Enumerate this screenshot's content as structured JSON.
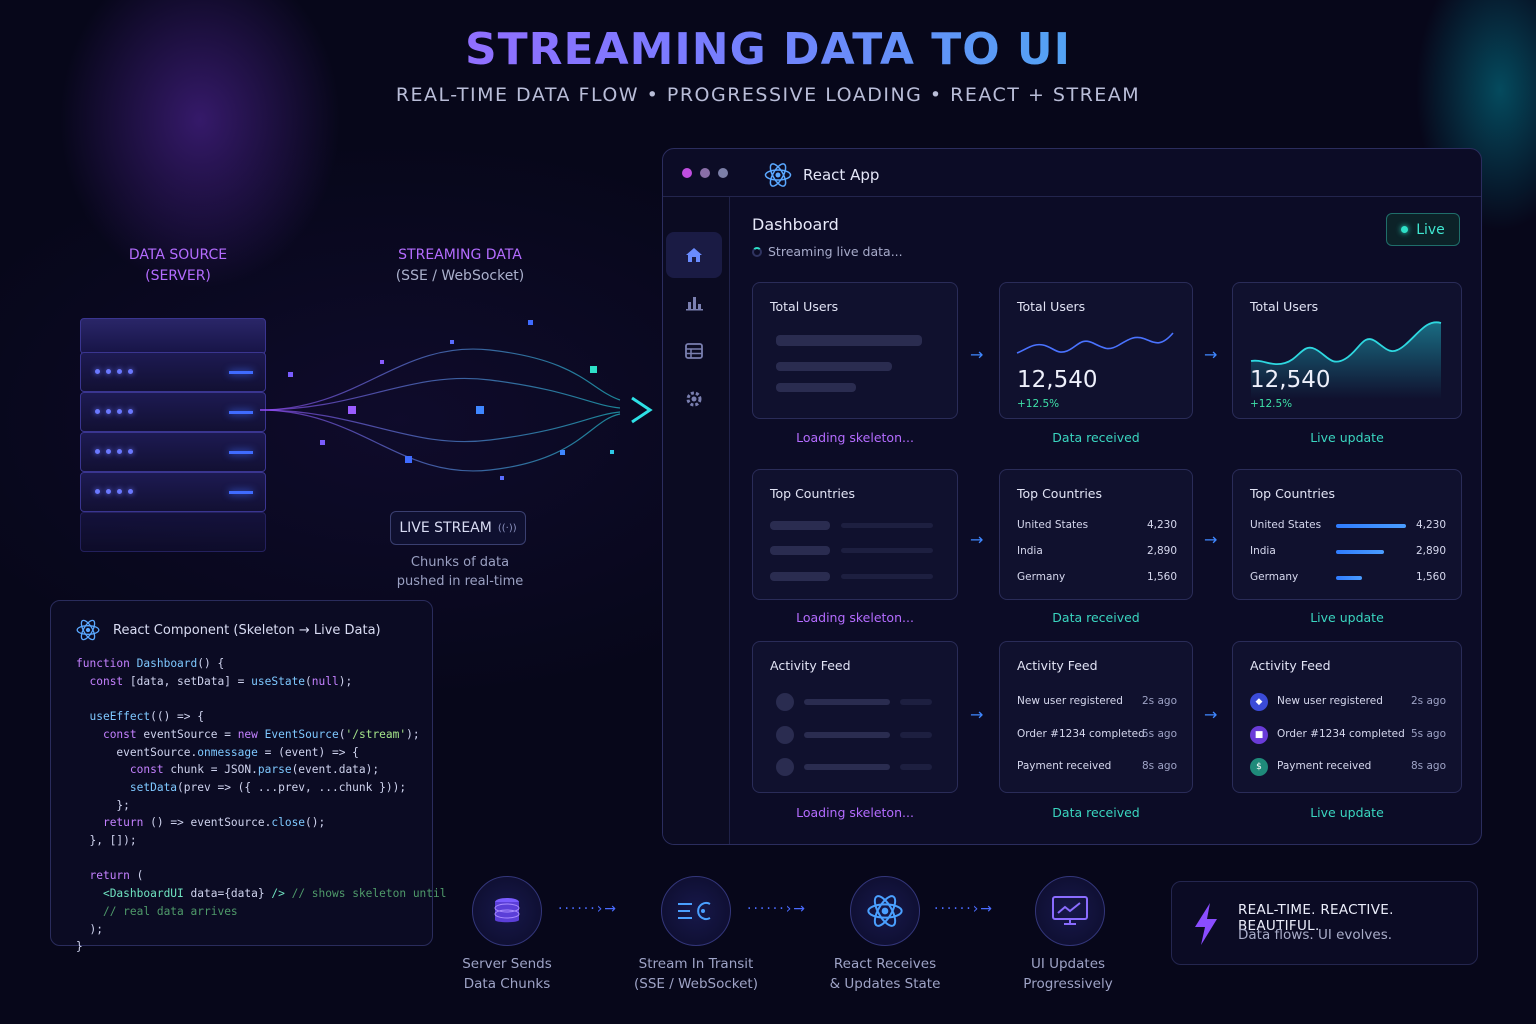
{
  "header": {
    "title": "STREAMING DATA TO UI",
    "subtitle": "REAL-TIME DATA FLOW  •  PROGRESSIVE LOADING  •  REACT + STREAM"
  },
  "left": {
    "source_line1": "DATA SOURCE",
    "source_line2": "(SERVER)",
    "streaming_line1": "STREAMING DATA",
    "streaming_line2": "(SSE / WebSocket)",
    "live_stream": "LIVE STREAM",
    "chunks_line1": "Chunks of data",
    "chunks_line2": "pushed in real-time"
  },
  "code_panel": {
    "title": "React Component (Skeleton → Live Data)"
  },
  "app": {
    "title": "React App",
    "dashboard_title": "Dashboard",
    "dashboard_sub": "Streaming live data...",
    "live_badge": "Live",
    "captions": {
      "loading": "Loading skeleton...",
      "received": "Data received",
      "live": "Live update"
    },
    "users": {
      "title": "Total Users",
      "value": "12,540",
      "delta": "+12.5%"
    },
    "countries": {
      "title": "Top Countries",
      "rows": [
        {
          "name": "United States",
          "value": "4,230",
          "share": 1.0
        },
        {
          "name": "India",
          "value": "2,890",
          "share": 0.68
        },
        {
          "name": "Germany",
          "value": "1,560",
          "share": 0.37
        }
      ]
    },
    "activity": {
      "title": "Activity Feed",
      "rows": [
        {
          "text": "New user registered",
          "time": "2s ago",
          "color": "#3b4bd8"
        },
        {
          "text": "Order #1234 completed",
          "time": "5s ago",
          "color": "#6a3bd8"
        },
        {
          "text": "Payment received",
          "time": "8s ago",
          "color": "#1f8a7a"
        }
      ]
    }
  },
  "flow": {
    "steps": [
      {
        "line1": "Server Sends",
        "line2": "Data Chunks"
      },
      {
        "line1": "Stream In Transit",
        "line2": "(SSE / WebSocket)"
      },
      {
        "line1": "React Receives",
        "line2": "& Updates State"
      },
      {
        "line1": "UI Updates",
        "line2": "Progressively"
      }
    ]
  },
  "tagline": {
    "line1": "REAL-TIME. REACTIVE. BEAUTIFUL.",
    "line2": "Data flows. UI evolves."
  },
  "colors": {
    "accent_purple": "#b46cff",
    "accent_teal": "#3ad6c0",
    "accent_blue": "#3f87ff"
  }
}
